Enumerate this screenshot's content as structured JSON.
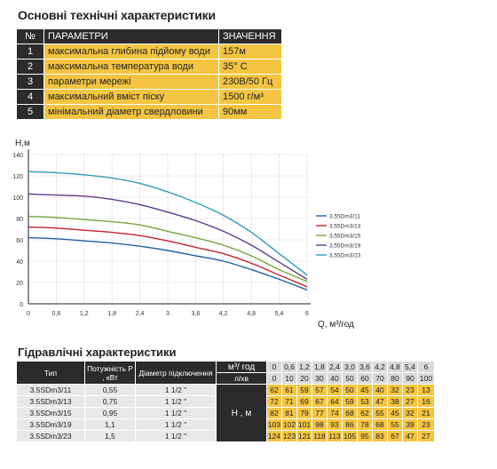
{
  "title": "Основні технічні характеристики",
  "spec": {
    "headers": [
      "№",
      "ПАРАМЕТРИ",
      "ЗНАЧЕННЯ"
    ],
    "rows": [
      {
        "n": "1",
        "param": "максимальна глибина підйому води",
        "value": "157м"
      },
      {
        "n": "2",
        "param": "максимальна температура води",
        "value": "35° С"
      },
      {
        "n": "3",
        "param": "параметри мережі",
        "value": "230В/50 Гц"
      },
      {
        "n": "4",
        "param": "максимальний вміст піску",
        "value": "1500 г/м³"
      },
      {
        "n": "5",
        "param": "мінімальний діаметр свердловини",
        "value": "90мм"
      }
    ]
  },
  "chart_data": {
    "type": "line",
    "xlabel": "Q, м³/год",
    "ylabel": "Н,м",
    "xlim": [
      0,
      6
    ],
    "ylim": [
      0,
      140
    ],
    "x_ticks": [
      "0",
      "0,6",
      "1,2",
      "1,8",
      "2,4",
      "3",
      "3,6",
      "4,2",
      "4,8",
      "5,4",
      "6"
    ],
    "y_ticks": [
      "0",
      "20",
      "40",
      "60",
      "80",
      "100",
      "120",
      "140"
    ],
    "grid": true,
    "legend_position": "right",
    "x": [
      0,
      0.6,
      1.2,
      1.8,
      2.4,
      3.0,
      3.6,
      4.2,
      4.8,
      5.4,
      6
    ],
    "series": [
      {
        "name": "3,55Dm3/11",
        "color": "#1f5fa8",
        "values": [
          62,
          61,
          59,
          57,
          54,
          50,
          45,
          40,
          32,
          23,
          13
        ]
      },
      {
        "name": "3,55Dm3/13",
        "color": "#c8202a",
        "values": [
          72,
          71,
          69,
          67,
          64,
          59,
          53,
          47,
          38,
          27,
          16
        ]
      },
      {
        "name": "3,55Dm3/15",
        "color": "#7aa33b",
        "values": [
          82,
          81,
          79,
          77,
          74,
          68,
          62,
          55,
          45,
          32,
          21
        ]
      },
      {
        "name": "3,55Dm3/19",
        "color": "#5b3a8f",
        "values": [
          103,
          102,
          101,
          98,
          93,
          86,
          78,
          68,
          55,
          39,
          23
        ]
      },
      {
        "name": "3,55Dm3/23",
        "color": "#2e9ab8",
        "values": [
          124,
          123,
          121,
          118,
          113,
          105,
          95,
          83,
          67,
          47,
          27
        ]
      }
    ]
  },
  "hydraulic": {
    "title": "Гідравлічні характеристики",
    "col_type": "Тип",
    "col_power": "Потужність Р , кВт",
    "col_diam": "Діаметр підключення",
    "q_m3": "м³/ год",
    "q_ls": "л/хв",
    "h_label": "Н , м",
    "q_m3_values": [
      "0",
      "0,6",
      "1,2",
      "1,8",
      "2,4",
      "3,0",
      "3,6",
      "4,2",
      "4,8",
      "5,4",
      "6"
    ],
    "q_ls_values": [
      "0",
      "10",
      "20",
      "30",
      "40",
      "50",
      "60",
      "70",
      "80",
      "90",
      "100"
    ],
    "rows": [
      {
        "type": "3.5SDm3/11",
        "power": "0,55",
        "diam": "1 1/2 \"",
        "h": [
          "62",
          "61",
          "59",
          "57",
          "54",
          "50",
          "45",
          "40",
          "32",
          "23",
          "13"
        ]
      },
      {
        "type": "3.5SDm3/13",
        "power": "0,75",
        "diam": "1 1/2 \"",
        "h": [
          "72",
          "71",
          "69",
          "67",
          "64",
          "59",
          "53",
          "47",
          "38",
          "27",
          "16"
        ]
      },
      {
        "type": "3.5SDm3/15",
        "power": "0,95",
        "diam": "1 1/2 \"",
        "h": [
          "82",
          "81",
          "79",
          "77",
          "74",
          "68",
          "62",
          "55",
          "45",
          "32",
          "21"
        ]
      },
      {
        "type": "3.5SDm3/19",
        "power": "1,1",
        "diam": "1 1/2 \"",
        "h": [
          "103",
          "102",
          "101",
          "98",
          "93",
          "86",
          "78",
          "68",
          "55",
          "39",
          "23"
        ]
      },
      {
        "type": "3.5SDm3/23",
        "power": "1,5",
        "diam": "1 1/2 \"",
        "h": [
          "124",
          "123",
          "121",
          "118",
          "113",
          "105",
          "95",
          "83",
          "67",
          "47",
          "27"
        ]
      }
    ]
  }
}
